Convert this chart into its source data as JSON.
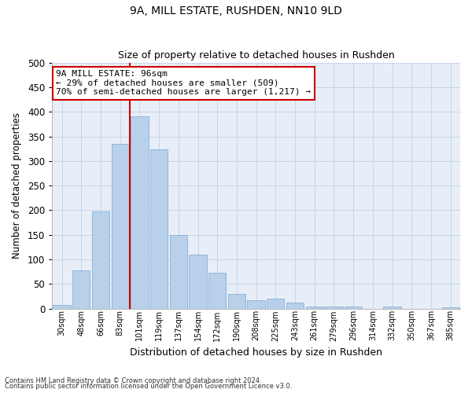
{
  "title1": "9A, MILL ESTATE, RUSHDEN, NN10 9LD",
  "title2": "Size of property relative to detached houses in Rushden",
  "xlabel": "Distribution of detached houses by size in Rushden",
  "ylabel": "Number of detached properties",
  "categories": [
    "30sqm",
    "48sqm",
    "66sqm",
    "83sqm",
    "101sqm",
    "119sqm",
    "137sqm",
    "154sqm",
    "172sqm",
    "190sqm",
    "208sqm",
    "225sqm",
    "243sqm",
    "261sqm",
    "279sqm",
    "296sqm",
    "314sqm",
    "332sqm",
    "350sqm",
    "367sqm",
    "385sqm"
  ],
  "values": [
    8,
    78,
    197,
    335,
    390,
    323,
    150,
    110,
    73,
    30,
    18,
    20,
    13,
    5,
    5,
    5,
    0,
    5,
    0,
    0,
    3
  ],
  "bar_color": "#b8d0ea",
  "bar_edge_color": "#8ab0d8",
  "grid_color": "#c8d4e8",
  "background_color": "#e8eef8",
  "vline_color": "#cc0000",
  "annotation_text": "9A MILL ESTATE: 96sqm\n← 29% of detached houses are smaller (509)\n70% of semi-detached houses are larger (1,217) →",
  "annotation_box_color": "#ffffff",
  "annotation_box_edge": "#cc0000",
  "ylim": [
    0,
    500
  ],
  "yticks": [
    0,
    50,
    100,
    150,
    200,
    250,
    300,
    350,
    400,
    450,
    500
  ],
  "footnote1": "Contains HM Land Registry data © Crown copyright and database right 2024.",
  "footnote2": "Contains public sector information licensed under the Open Government Licence v3.0."
}
